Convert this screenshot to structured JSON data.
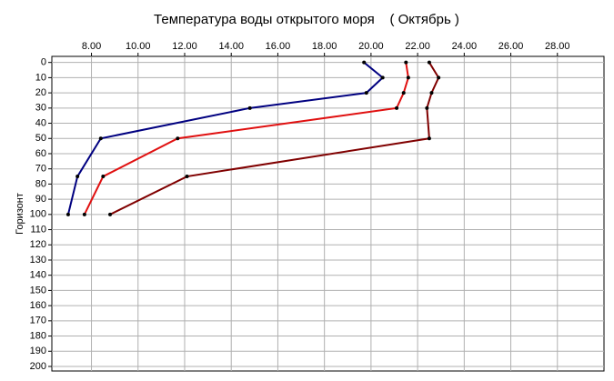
{
  "chart_data": {
    "type": "profile",
    "title": "Температура воды открытого моря    ( Октябрь )",
    "y_label": "Горизонт",
    "y": [
      0,
      10,
      20,
      30,
      50,
      75,
      100
    ],
    "series": [
      {
        "color": "#000080",
        "values": [
          19.7,
          20.5,
          19.8,
          14.8,
          8.4,
          7.4,
          7.0
        ]
      },
      {
        "color": "#e01010",
        "values": [
          21.5,
          21.6,
          21.4,
          21.1,
          11.7,
          8.5,
          7.7
        ]
      },
      {
        "color": "#800000",
        "values": [
          22.5,
          22.9,
          22.6,
          22.4,
          22.5,
          12.1,
          8.8
        ]
      }
    ],
    "xlim": [
      6.3,
      30
    ],
    "xticks": [
      {
        "value": 8,
        "label": "8.00"
      },
      {
        "value": 10,
        "label": "10.00"
      },
      {
        "value": 12,
        "label": "12.00"
      },
      {
        "value": 14,
        "label": "14.00"
      },
      {
        "value": 16,
        "label": "16.00"
      },
      {
        "value": 18,
        "label": "18.00"
      },
      {
        "value": 20,
        "label": "20.00"
      },
      {
        "value": 22,
        "label": "22.00"
      },
      {
        "value": 24,
        "label": "24.00"
      },
      {
        "value": 26,
        "label": "26.00"
      },
      {
        "value": 28,
        "label": "28.00"
      }
    ],
    "ylim": [
      -4,
      203
    ],
    "y_inverted": true,
    "yticks": [
      0,
      10,
      20,
      30,
      40,
      50,
      60,
      70,
      80,
      90,
      100,
      110,
      120,
      130,
      140,
      150,
      160,
      170,
      180,
      190,
      200
    ],
    "grid": true
  }
}
